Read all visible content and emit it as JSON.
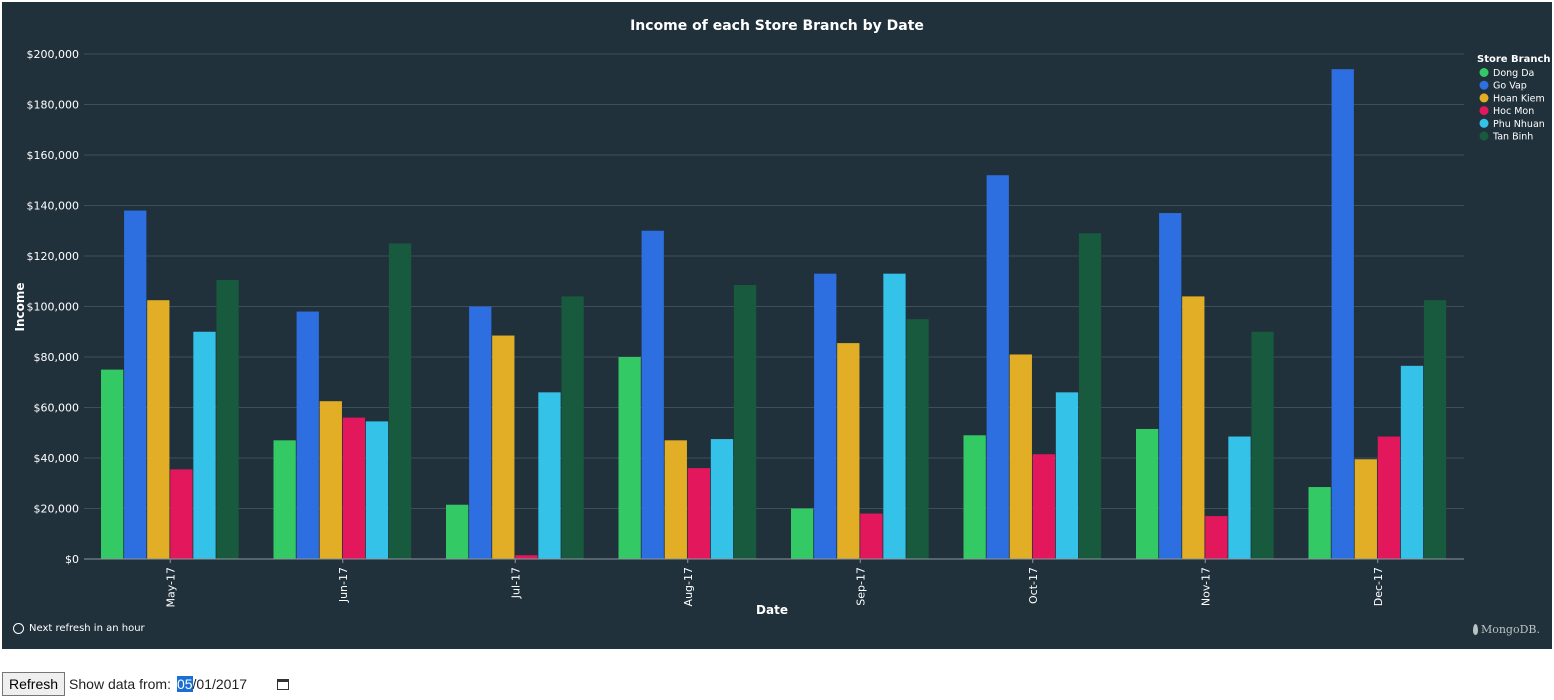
{
  "chart_data": {
    "type": "bar",
    "title": "Income of each Store Branch by Date",
    "xlabel": "Date",
    "ylabel": "Income",
    "ylim": [
      0,
      200000
    ],
    "yticks": [
      "$0",
      "$20,000",
      "$40,000",
      "$60,000",
      "$80,000",
      "$100,000",
      "$120,000",
      "$140,000",
      "$160,000",
      "$180,000",
      "$200,000"
    ],
    "categories": [
      "May-17",
      "Jun-17",
      "Jul-17",
      "Aug-17",
      "Sep-17",
      "Oct-17",
      "Nov-17",
      "Dec-17"
    ],
    "legend_title": "Store Branch",
    "legend_position": "right",
    "grid": true,
    "series": [
      {
        "name": "Dong Da",
        "color": "#33c965",
        "values": [
          75000,
          47000,
          21500,
          80000,
          20000,
          49000,
          51500,
          28500
        ]
      },
      {
        "name": "Go Vap",
        "color": "#2d6ee0",
        "values": [
          138000,
          98000,
          100000,
          130000,
          113000,
          152000,
          137000,
          194000
        ]
      },
      {
        "name": "Hoan Kiem",
        "color": "#e1ae26",
        "values": [
          102500,
          62500,
          88500,
          47000,
          85500,
          81000,
          104000,
          39500
        ]
      },
      {
        "name": "Hoc Mon",
        "color": "#e2175c",
        "values": [
          35500,
          56000,
          1500,
          36000,
          18000,
          41500,
          17000,
          48500
        ]
      },
      {
        "name": "Phu Nhuan",
        "color": "#35c2e8",
        "values": [
          90000,
          54500,
          66000,
          47500,
          113000,
          66000,
          48500,
          76500
        ]
      },
      {
        "name": "Tan Binh",
        "color": "#185a3d",
        "values": [
          110500,
          125000,
          104000,
          108500,
          95000,
          129000,
          90000,
          102500
        ]
      }
    ]
  },
  "footer": {
    "refresh_note": "Next refresh in an hour",
    "brand": "MongoDB."
  },
  "controls": {
    "refresh_label": "Refresh",
    "show_from_label": "Show data from:",
    "date_month": "05",
    "date_rest": "/01/2017"
  },
  "colors": {
    "panel_bg": "#21313c",
    "grid": "#3d4f5a"
  }
}
